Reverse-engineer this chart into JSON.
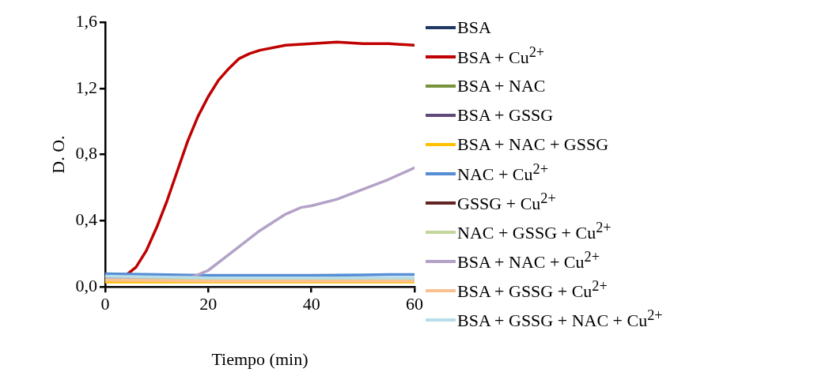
{
  "chart_data": {
    "type": "line",
    "xlabel": "Tiempo (min)",
    "ylabel": "D. O.",
    "xlim": [
      0,
      60
    ],
    "xticks": [
      0,
      20,
      40,
      60
    ],
    "ylim": [
      0,
      1.6
    ],
    "yticks": [
      {
        "value": 0,
        "label": "0,0"
      },
      {
        "value": 0.4,
        "label": "0,4"
      },
      {
        "value": 0.8,
        "label": "0,8"
      },
      {
        "value": 1.2,
        "label": "1,2"
      },
      {
        "value": 1.6,
        "label": "1,6"
      }
    ],
    "grid": false,
    "legend": "right",
    "marker": "none",
    "line_style": "solid",
    "series": [
      {
        "name": "BSA",
        "color": "#1f3864"
      },
      {
        "name": "BSA + Cu$^{2+}$",
        "color": "#c00000",
        "x": [
          0,
          4,
          6,
          8,
          10,
          12,
          14,
          16,
          18,
          20,
          22,
          24,
          26,
          28,
          30,
          35,
          40,
          45,
          50,
          55,
          60
        ],
        "values": [
          0.07,
          0.07,
          0.12,
          0.22,
          0.36,
          0.52,
          0.7,
          0.88,
          1.03,
          1.15,
          1.25,
          1.32,
          1.38,
          1.41,
          1.43,
          1.46,
          1.47,
          1.48,
          1.47,
          1.47,
          1.46
        ]
      },
      {
        "name": "BSA + NAC",
        "color": "#77933c"
      },
      {
        "name": "BSA + GSSG",
        "color": "#604a7b"
      },
      {
        "name": "BSA + NAC + GSSG",
        "color": "#ffc000",
        "x": [
          0,
          20,
          40,
          60
        ],
        "values": [
          0.03,
          0.03,
          0.03,
          0.03
        ]
      },
      {
        "name": "NAC + Cu$^{2+}$",
        "color": "#558ed5",
        "x": [
          0,
          10,
          20,
          30,
          40,
          50,
          55,
          60
        ],
        "values": [
          0.08,
          0.075,
          0.07,
          0.07,
          0.07,
          0.072,
          0.075,
          0.075
        ]
      },
      {
        "name": "GSSG + Cu$^{2+}$",
        "color": "#632523"
      },
      {
        "name": "NAC + GSSG + Cu$^{2+}$",
        "color": "#c3d69b",
        "x": [
          0,
          20,
          40,
          60
        ],
        "values": [
          0.05,
          0.045,
          0.045,
          0.045
        ]
      },
      {
        "name": "BSA + NAC + Cu$^{2+}$",
        "color": "#b3a2c7",
        "x": [
          0,
          17,
          20,
          25,
          30,
          35,
          38,
          40,
          45,
          50,
          55,
          60
        ],
        "values": [
          0.06,
          0.06,
          0.1,
          0.22,
          0.34,
          0.44,
          0.48,
          0.49,
          0.53,
          0.59,
          0.65,
          0.72
        ]
      },
      {
        "name": "BSA + GSSG + Cu$^{2+}$",
        "color": "#fac090",
        "x": [
          0,
          20,
          40,
          60
        ],
        "values": [
          0.04,
          0.035,
          0.035,
          0.035
        ]
      },
      {
        "name": "BSA + GSSG + NAC + Cu$^{2+}$",
        "color": "#b7dde8",
        "x": [
          0,
          20,
          40,
          60
        ],
        "values": [
          0.065,
          0.055,
          0.055,
          0.055
        ]
      }
    ]
  }
}
